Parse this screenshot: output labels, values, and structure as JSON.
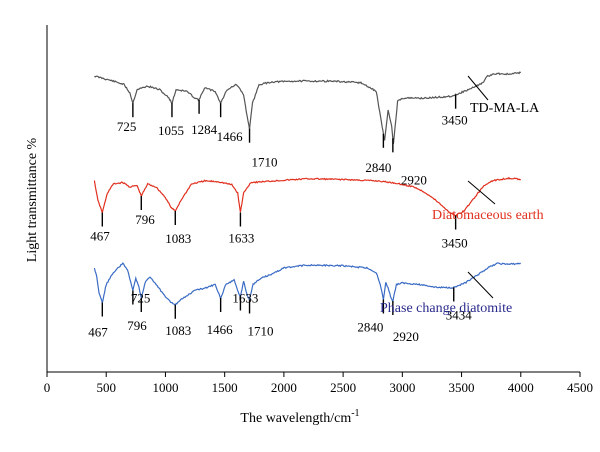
{
  "chart_data": {
    "type": "line",
    "title": "",
    "xlabel": "The wavelength/cm",
    "xlabel_superscript": "-1",
    "ylabel": "Light transmittance %",
    "xlim": [
      0,
      4500
    ],
    "x_ticks": [
      0,
      500,
      1000,
      1500,
      2000,
      2500,
      3000,
      3500,
      4000,
      4500
    ],
    "y_ticks_shown": false,
    "grid": false,
    "series": [
      {
        "name": "TD-MA-LA",
        "color": "#555555",
        "label_color": "#000000",
        "peaks": [
          "725",
          "1055",
          "1284",
          "1466",
          "1710",
          "2840",
          "2920",
          "3450"
        ],
        "profile": [
          [
            400,
            0
          ],
          [
            560,
            0.6
          ],
          [
            650,
            1.0
          ],
          [
            700,
            2.0
          ],
          [
            725,
            3.2
          ],
          [
            760,
            1.6
          ],
          [
            850,
            1.2
          ],
          [
            950,
            1.6
          ],
          [
            1030,
            2.6
          ],
          [
            1055,
            3.2
          ],
          [
            1090,
            1.6
          ],
          [
            1180,
            1.8
          ],
          [
            1250,
            2.6
          ],
          [
            1284,
            2.8
          ],
          [
            1330,
            1.4
          ],
          [
            1420,
            1.8
          ],
          [
            1466,
            3.2
          ],
          [
            1520,
            1.6
          ],
          [
            1600,
            1.0
          ],
          [
            1660,
            2.2
          ],
          [
            1690,
            4.8
          ],
          [
            1710,
            6.2
          ],
          [
            1735,
            3.2
          ],
          [
            1790,
            1.0
          ],
          [
            1900,
            0.7
          ],
          [
            2100,
            0.6
          ],
          [
            2400,
            0.6
          ],
          [
            2650,
            0.8
          ],
          [
            2780,
            1.8
          ],
          [
            2830,
            6.0
          ],
          [
            2850,
            7.6
          ],
          [
            2880,
            4.0
          ],
          [
            2910,
            6.0
          ],
          [
            2925,
            8.0
          ],
          [
            2960,
            3.0
          ],
          [
            3000,
            2.6
          ],
          [
            3200,
            2.6
          ],
          [
            3400,
            2.4
          ],
          [
            3450,
            2.2
          ],
          [
            3560,
            1.6
          ],
          [
            3680,
            0.8
          ],
          [
            3720,
            0.0
          ],
          [
            3800,
            -0.3
          ],
          [
            3900,
            -0.2
          ],
          [
            4000,
            -0.4
          ]
        ]
      },
      {
        "name": "Diatomaceous earth",
        "color": "#e0301e",
        "label_color": "#e0301e",
        "peaks": [
          "467",
          "796",
          "1083",
          "1633",
          "3450"
        ],
        "profile": [
          [
            400,
            0
          ],
          [
            430,
            2.6
          ],
          [
            467,
            4.2
          ],
          [
            510,
            1.6
          ],
          [
            560,
            0.4
          ],
          [
            640,
            0.2
          ],
          [
            700,
            0.8
          ],
          [
            760,
            0.6
          ],
          [
            796,
            2.0
          ],
          [
            850,
            0.4
          ],
          [
            920,
            0.8
          ],
          [
            1000,
            2.2
          ],
          [
            1050,
            3.6
          ],
          [
            1083,
            4.0
          ],
          [
            1130,
            2.6
          ],
          [
            1220,
            0.4
          ],
          [
            1330,
            0.0
          ],
          [
            1450,
            0.1
          ],
          [
            1560,
            0.5
          ],
          [
            1610,
            1.6
          ],
          [
            1633,
            4.2
          ],
          [
            1660,
            1.6
          ],
          [
            1720,
            0.2
          ],
          [
            1900,
            0.0
          ],
          [
            2200,
            -0.3
          ],
          [
            2500,
            -0.2
          ],
          [
            2800,
            0.0
          ],
          [
            2950,
            0.3
          ],
          [
            3100,
            0.8
          ],
          [
            3200,
            1.6
          ],
          [
            3300,
            2.8
          ],
          [
            3400,
            4.2
          ],
          [
            3450,
            4.6
          ],
          [
            3520,
            4.0
          ],
          [
            3600,
            2.4
          ],
          [
            3680,
            0.8
          ],
          [
            3750,
            0.0
          ],
          [
            3900,
            -0.4
          ],
          [
            4000,
            -0.2
          ]
        ]
      },
      {
        "name": "Phase change diatomite",
        "color": "#3a6bc4",
        "label_color": "#2a2a8c",
        "peaks": [
          "467",
          "725",
          "796",
          "1083",
          "1466",
          "1633",
          "1710",
          "2840",
          "2920",
          "3434"
        ],
        "profile": [
          [
            400,
            0
          ],
          [
            420,
            1.2
          ],
          [
            440,
            3.4
          ],
          [
            467,
            4.6
          ],
          [
            500,
            2.2
          ],
          [
            560,
            0.6
          ],
          [
            600,
            0.0
          ],
          [
            640,
            -0.6
          ],
          [
            680,
            0.2
          ],
          [
            705,
            1.8
          ],
          [
            725,
            3.0
          ],
          [
            750,
            1.4
          ],
          [
            775,
            2.4
          ],
          [
            796,
            4.0
          ],
          [
            830,
            1.8
          ],
          [
            870,
            1.2
          ],
          [
            930,
            2.4
          ],
          [
            1000,
            3.8
          ],
          [
            1050,
            4.6
          ],
          [
            1083,
            4.9
          ],
          [
            1150,
            4.0
          ],
          [
            1250,
            3.0
          ],
          [
            1350,
            2.6
          ],
          [
            1420,
            2.2
          ],
          [
            1466,
            4.0
          ],
          [
            1510,
            2.2
          ],
          [
            1580,
            1.6
          ],
          [
            1615,
            3.2
          ],
          [
            1633,
            3.8
          ],
          [
            1660,
            1.8
          ],
          [
            1690,
            3.6
          ],
          [
            1710,
            4.2
          ],
          [
            1740,
            2.2
          ],
          [
            1800,
            1.4
          ],
          [
            1900,
            0.8
          ],
          [
            2000,
            0.0
          ],
          [
            2200,
            -0.4
          ],
          [
            2500,
            -0.3
          ],
          [
            2700,
            0.0
          ],
          [
            2780,
            0.6
          ],
          [
            2820,
            2.6
          ],
          [
            2840,
            4.2
          ],
          [
            2860,
            2.0
          ],
          [
            2880,
            2.6
          ],
          [
            2900,
            3.8
          ],
          [
            2920,
            4.4
          ],
          [
            2950,
            2.2
          ],
          [
            3000,
            2.0
          ],
          [
            3150,
            2.2
          ],
          [
            3300,
            2.6
          ],
          [
            3434,
            2.6
          ],
          [
            3530,
            2.0
          ],
          [
            3630,
            1.0
          ],
          [
            3720,
            0.0
          ],
          [
            3800,
            -0.6
          ],
          [
            3900,
            -0.5
          ],
          [
            4000,
            -0.6
          ]
        ]
      }
    ]
  }
}
